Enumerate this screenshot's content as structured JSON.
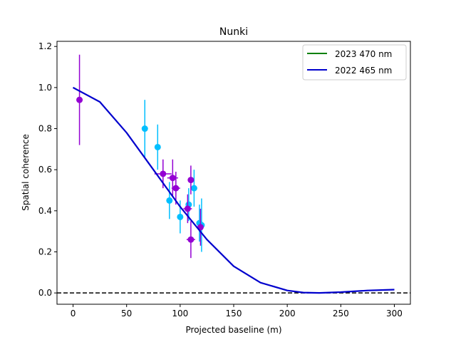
{
  "chart_data": {
    "type": "scatter",
    "title": "Nunki",
    "xlabel": "Projected baseline (m)",
    "ylabel": "Spatial coherence",
    "xlim": [
      -15,
      315
    ],
    "ylim": [
      -0.055,
      1.225
    ],
    "x_ticks": [
      0,
      50,
      100,
      150,
      200,
      250,
      300
    ],
    "y_ticks": [
      0.0,
      0.2,
      0.4,
      0.6,
      0.8,
      1.0,
      1.2
    ],
    "grid": false,
    "legend_position": "top-right",
    "reference_line": {
      "y": 0.0,
      "style": "dashed",
      "color": "#000000"
    },
    "series": [
      {
        "name": "2023 470 nm",
        "kind": "model-curve",
        "color": "#008000",
        "points": []
      },
      {
        "name": "2022 465 nm",
        "kind": "model-curve",
        "color": "#0000cd",
        "x_range": [
          0,
          300
        ],
        "points": [
          [
            0,
            1.0
          ],
          [
            25,
            0.93
          ],
          [
            50,
            0.78
          ],
          [
            75,
            0.6
          ],
          [
            100,
            0.42
          ],
          [
            125,
            0.26
          ],
          [
            150,
            0.13
          ],
          [
            175,
            0.05
          ],
          [
            200,
            0.012
          ],
          [
            215,
            0.002
          ],
          [
            230,
            0.0
          ],
          [
            250,
            0.004
          ],
          [
            275,
            0.012
          ],
          [
            300,
            0.016
          ]
        ]
      },
      {
        "kind": "measurements",
        "color": "#00bfff",
        "points": [
          {
            "x": 67,
            "y": 0.8,
            "yerr": 0.14,
            "xerr": 0
          },
          {
            "x": 79,
            "y": 0.71,
            "yerr": 0.11,
            "xerr": 2
          },
          {
            "x": 90,
            "y": 0.45,
            "yerr": 0.09,
            "xerr": 0
          },
          {
            "x": 100,
            "y": 0.37,
            "yerr": 0.08,
            "xerr": 0
          },
          {
            "x": 108,
            "y": 0.43,
            "yerr": 0.08,
            "xerr": 0
          },
          {
            "x": 113,
            "y": 0.51,
            "yerr": 0.09,
            "xerr": 0
          },
          {
            "x": 118,
            "y": 0.34,
            "yerr": 0.09,
            "xerr": 0
          },
          {
            "x": 120,
            "y": 0.33,
            "yerr": 0.13,
            "xerr": 0
          }
        ]
      },
      {
        "kind": "measurements",
        "color": "#9400d3",
        "points": [
          {
            "x": 6,
            "y": 0.94,
            "yerr": 0.22,
            "xerr": 0
          },
          {
            "x": 84,
            "y": 0.58,
            "yerr": 0.07,
            "xerr": 8
          },
          {
            "x": 93,
            "y": 0.56,
            "yerr": 0.09,
            "xerr": 5
          },
          {
            "x": 96,
            "y": 0.51,
            "yerr": 0.08,
            "xerr": 4
          },
          {
            "x": 107,
            "y": 0.41,
            "yerr": 0.07,
            "xerr": 4
          },
          {
            "x": 110,
            "y": 0.55,
            "yerr": 0.07,
            "xerr": 0
          },
          {
            "x": 110,
            "y": 0.26,
            "yerr": 0.09,
            "xerr": 4
          },
          {
            "x": 119,
            "y": 0.32,
            "yerr": 0.09,
            "xerr": 0
          }
        ]
      }
    ]
  }
}
